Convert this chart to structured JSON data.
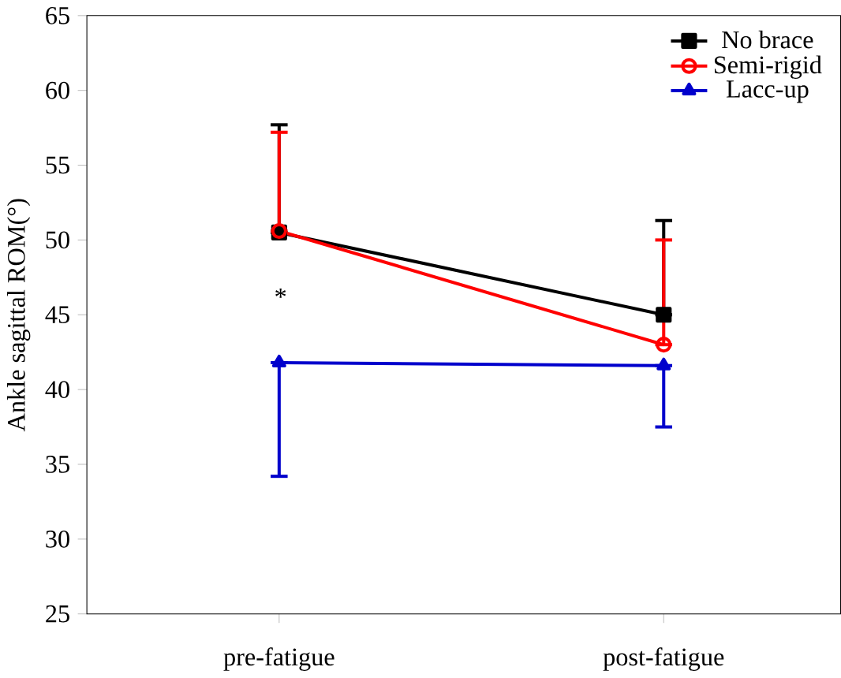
{
  "chart_data": {
    "type": "line",
    "ylabel": "Ankle sagittal ROM(°)",
    "categories": [
      "pre-fatigue",
      "post-fatigue"
    ],
    "series": [
      {
        "name": "No brace",
        "color": "#000000",
        "marker": "square",
        "values": [
          50.5,
          45.0
        ],
        "errors": [
          [
            50.5,
            57.7
          ],
          [
            45.0,
            51.3
          ]
        ]
      },
      {
        "name": "Semi-rigid",
        "color": "#ff0000",
        "marker": "circle",
        "values": [
          50.6,
          43.0
        ],
        "errors": [
          [
            50.6,
            57.2
          ],
          [
            43.0,
            50.0
          ]
        ]
      },
      {
        "name": "Lacc-up",
        "color": "#0000cc",
        "marker": "triangle",
        "values": [
          41.8,
          41.6
        ],
        "errors": [
          [
            34.2,
            41.8
          ],
          [
            37.5,
            41.6
          ]
        ]
      }
    ],
    "annotations": [
      "*"
    ],
    "ylim": [
      25,
      65
    ],
    "yticks": [
      25,
      30,
      35,
      40,
      45,
      50,
      55,
      60,
      65
    ],
    "legend": "top right",
    "grid": false
  }
}
